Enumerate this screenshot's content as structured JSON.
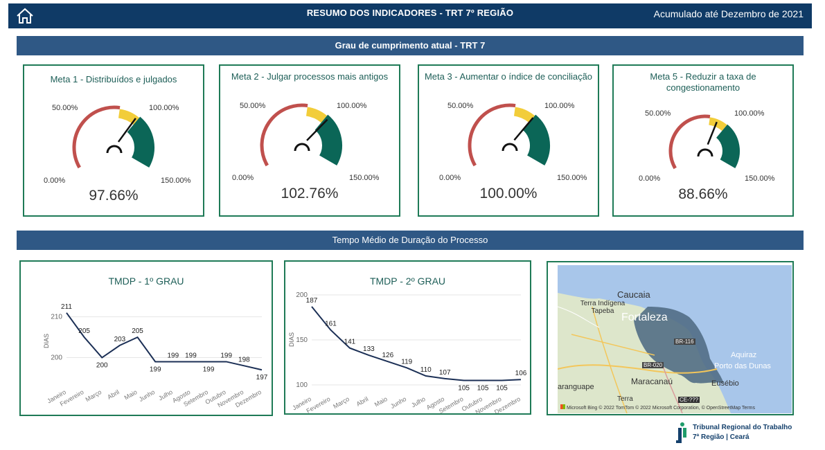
{
  "header": {
    "title": "RESUMO DOS INDICADORES - TRT 7º REGIÃO",
    "period": "Acumulado até Dezembro de 2021"
  },
  "section_goals": {
    "title": "Grau de cumprimento atual - TRT 7"
  },
  "gauges": [
    {
      "title": "Meta 1 - Distribuídos e julgados",
      "value_label": "97.66%",
      "value": 97.66,
      "min_label": "0.00%",
      "mid_label": "50.00%",
      "target_label": "100.00%",
      "max_label": "150.00%"
    },
    {
      "title": "Meta 2 - Julgar processos mais antigos",
      "value_label": "102.76%",
      "value": 102.76,
      "min_label": "0.00%",
      "mid_label": "50.00%",
      "target_label": "100.00%",
      "max_label": "150.00%"
    },
    {
      "title": "Meta 3 - Aumentar o índice de conciliação",
      "value_label": "100.00%",
      "value": 100.0,
      "min_label": "0.00%",
      "mid_label": "50.00%",
      "target_label": "100.00%",
      "max_label": "150.00%"
    },
    {
      "title": "Meta 5 - Reduzir a taxa de congestionamento",
      "value_label": "88.66%",
      "value": 88.66,
      "min_label": "0.00%",
      "mid_label": "50.00%",
      "target_label": "100.00%",
      "max_label": "150.00%"
    }
  ],
  "section_time": {
    "title": "Tempo Médio de Duração do Processo"
  },
  "chart_data": [
    {
      "type": "line",
      "title": "TMDP - 1º GRAU",
      "ylabel": "DIAS",
      "categories": [
        "Janeiro",
        "Fevereiro",
        "Março",
        "Abril",
        "Maio",
        "Junho",
        "Julho",
        "Agosto",
        "Setembro",
        "Outubro",
        "Novembro",
        "Dezembro"
      ],
      "values": [
        211,
        205,
        200,
        203,
        205,
        199,
        199,
        199,
        199,
        199,
        198,
        197
      ],
      "yticks": [
        200,
        210
      ],
      "ylim": [
        195,
        213
      ]
    },
    {
      "type": "line",
      "title": "TMDP - 2º GRAU",
      "ylabel": "DIAS",
      "categories": [
        "Janeiro",
        "Fevereiro",
        "Março",
        "Abril",
        "Maio",
        "Junho",
        "Julho",
        "Agosto",
        "Setembro",
        "Outubro",
        "Novembro",
        "Dezembro"
      ],
      "values": [
        187,
        161,
        141,
        133,
        126,
        119,
        110,
        107,
        105,
        105,
        105,
        106
      ],
      "yticks": [
        100,
        150,
        200
      ],
      "ylim": [
        100,
        200
      ]
    }
  ],
  "map": {
    "labels": [
      "Caucaia",
      "Terra Indígena Tapeba",
      "Fortaleza",
      "BR-116",
      "BR-020",
      "Porto das Dunas",
      "Aquiraz",
      "Maracanaú",
      "Eusébio",
      "aranguape",
      "Terra",
      "CE-???"
    ],
    "credit": "© 2022 TomTom © 2022 Microsoft Corporation, © OpenStreetMap  Terms",
    "brand": "Microsoft Bing"
  },
  "logo": {
    "line1": "Tribunal Regional do Trabalho",
    "line2": "7ª Região | Ceará"
  },
  "colors": {
    "header_bg": "#0f3a66",
    "section_bg": "#2f5885",
    "card_border": "#1e7a56",
    "gauge_red": "#c0504d",
    "gauge_yellow": "#f2cd3a",
    "gauge_green": "#0b6657",
    "line_color": "#1b2f55"
  }
}
